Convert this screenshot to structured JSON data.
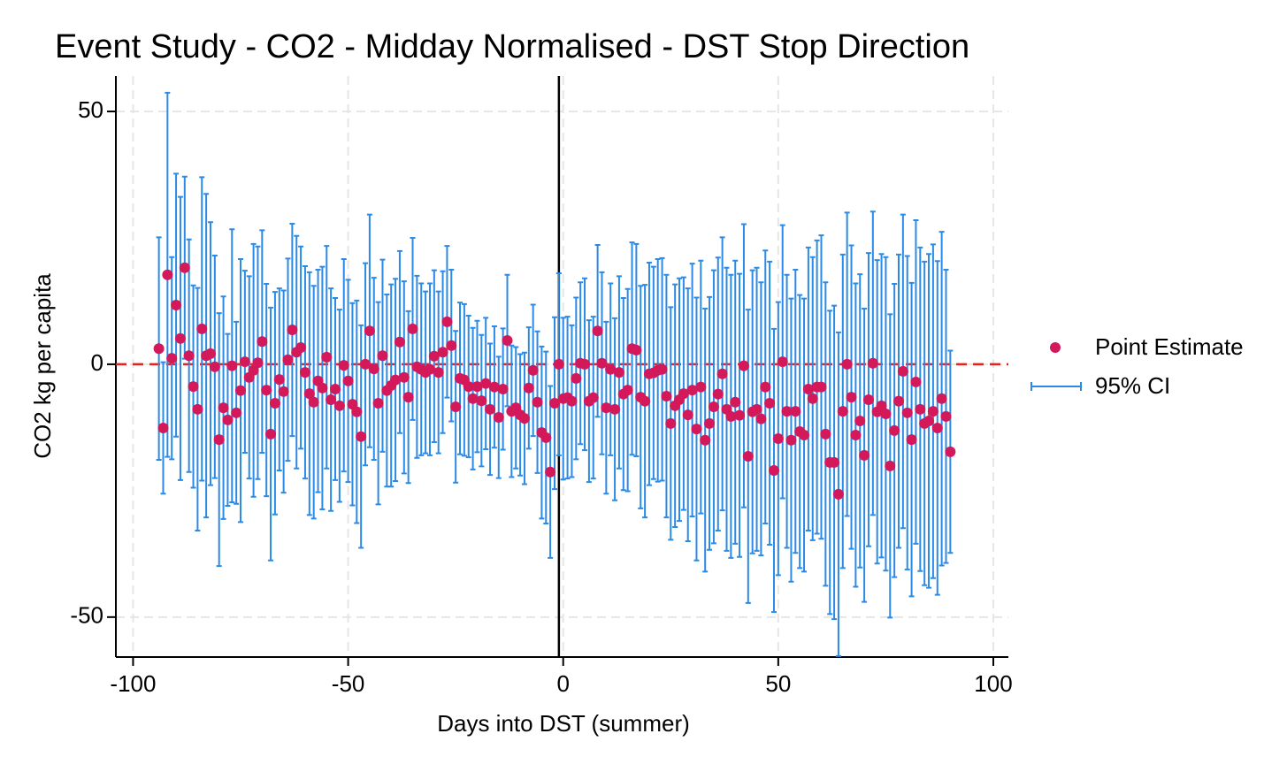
{
  "chart_data": {
    "type": "errorbar",
    "title": "Event Study - CO2 - Midday Normalised - DST Stop Direction",
    "x_label": "Days into DST (summer)",
    "y_label": "CO2 kg per capita",
    "x": [
      -94,
      -93,
      -92,
      -91,
      -90,
      -89,
      -88,
      -87,
      -86,
      -85,
      -84,
      -83,
      -82,
      -81,
      -80,
      -79,
      -78,
      -77,
      -76,
      -75,
      -74,
      -73,
      -72,
      -71,
      -70,
      -69,
      -68,
      -67,
      -66,
      -65,
      -64,
      -63,
      -62,
      -61,
      -60,
      -59,
      -58,
      -57,
      -56,
      -55,
      -54,
      -53,
      -52,
      -51,
      -50,
      -49,
      -48,
      -47,
      -46,
      -45,
      -44,
      -43,
      -42,
      -41,
      -40,
      -39,
      -38,
      -37,
      -36,
      -35,
      -34,
      -33,
      -32,
      -31,
      -30,
      -29,
      -28,
      -27,
      -26,
      -25,
      -24,
      -23,
      -22,
      -21,
      -20,
      -19,
      -18,
      -17,
      -16,
      -15,
      -14,
      -13,
      -12,
      -11,
      -10,
      -9,
      -8,
      -7,
      -6,
      -5,
      -4,
      -3,
      -2,
      -1,
      0,
      1,
      2,
      3,
      4,
      5,
      6,
      7,
      8,
      9,
      10,
      11,
      12,
      13,
      14,
      15,
      16,
      17,
      18,
      19,
      20,
      21,
      22,
      23,
      24,
      25,
      26,
      27,
      28,
      29,
      30,
      31,
      32,
      33,
      34,
      35,
      36,
      37,
      38,
      39,
      40,
      41,
      42,
      43,
      44,
      45,
      46,
      47,
      48,
      49,
      50,
      51,
      52,
      53,
      54,
      55,
      56,
      57,
      58,
      59,
      60,
      61,
      62,
      63,
      64,
      65,
      66,
      67,
      68,
      69,
      70,
      71,
      72,
      73,
      74,
      75,
      76,
      77,
      78,
      79,
      80,
      81,
      82,
      83,
      84,
      85,
      86,
      87,
      88,
      89,
      90
    ],
    "series": [
      {
        "name": "Point Estimate",
        "color": "#d3195a",
        "values": [
          3.1,
          -12.6,
          17.7,
          1.2,
          11.7,
          5.1,
          19.1,
          1.7,
          -4.4,
          -8.9,
          7.0,
          1.7,
          2.1,
          -0.5,
          -14.9,
          -8.6,
          -11.0,
          -0.3,
          -9.6,
          -5.2,
          0.5,
          -2.6,
          -1.2,
          0.3,
          4.5,
          -5.1,
          -13.8,
          -7.7,
          -3.0,
          -5.4,
          0.9,
          6.8,
          2.4,
          3.3,
          -1.6,
          -5.8,
          -7.5,
          -3.3,
          -4.7,
          1.4,
          -7.0,
          -4.9,
          -8.2,
          -0.2,
          -3.3,
          -7.9,
          -9.4,
          -14.3,
          0,
          6.6,
          -0.9,
          -7.7,
          1.7,
          -5.2,
          -4.2,
          -3.1,
          4.4,
          -2.6,
          -6.5,
          7.0,
          -0.5,
          -1.0,
          -1.6,
          -1.0,
          1.6,
          -1.6,
          2.4,
          8.4,
          3.7,
          -8.4,
          -2.8,
          -3.1,
          -4.4,
          -6.8,
          -4.4,
          -7.2,
          -3.8,
          -8.9,
          -4.5,
          -10.5,
          -4.9,
          4.7,
          -9.3,
          -8.6,
          -10.0,
          -10.7,
          -4.7,
          -1.2,
          -7.5,
          -13.5,
          -14.5,
          -21.3,
          -7.7,
          0,
          -6.8,
          -6.6,
          -7.3,
          -2.8,
          0.2,
          0,
          -7.3,
          -6.6,
          6.6,
          0.2,
          -8.6,
          -1.0,
          -8.9,
          -1.6,
          -5.9,
          -5.1,
          3.1,
          2.8,
          -6.5,
          -7.3,
          -1.9,
          -1.7,
          -1.2,
          -1.0,
          -6.3,
          -11.7,
          -8.2,
          -7.0,
          -5.8,
          -10.0,
          -5.1,
          -12.8,
          -4.5,
          -15.0,
          -11.7,
          -8.4,
          -5.9,
          -1.9,
          -8.9,
          -10.3,
          -7.5,
          -10.1,
          -0.3,
          -18.2,
          -9.4,
          -8.9,
          -10.8,
          -4.5,
          -7.7,
          -21.0,
          -14.7,
          0.5,
          -9.3,
          -15.0,
          -9.3,
          -13.3,
          -14.0,
          -4.9,
          -6.8,
          -4.5,
          -4.5,
          -13.8,
          -19.4,
          -19.4,
          -25.7,
          -9.3,
          0,
          -6.5,
          -14.0,
          -11.2,
          -18.0,
          -7.0,
          0.2,
          -9.4,
          -8.2,
          -9.8,
          -20.1,
          -13.1,
          -7.3,
          -1.4,
          -9.6,
          -14.9,
          -3.5,
          -8.9,
          -11.7,
          -11.2,
          -9.3,
          -12.6,
          -6.8,
          -10.3,
          -17.3
        ]
      }
    ],
    "ci": {
      "name": "95% CI",
      "color": "#2b8ae6",
      "errors": [
        22,
        13,
        36,
        20,
        26,
        28,
        18,
        23,
        20,
        24,
        30,
        32,
        26,
        22,
        25,
        22,
        17,
        27,
        18,
        26,
        18,
        20,
        25,
        23,
        22,
        21,
        25,
        22,
        18,
        20,
        20,
        21,
        23,
        20,
        21,
        24,
        23,
        22,
        24,
        22,
        22,
        18,
        19,
        21,
        20,
        20,
        22,
        22,
        20,
        23,
        18,
        20,
        19,
        19,
        20,
        20,
        18,
        19,
        17,
        18,
        18,
        17,
        16,
        17,
        17,
        16,
        16,
        15,
        15,
        15,
        15,
        15,
        14,
        14,
        13,
        13,
        13,
        13,
        12,
        12,
        12,
        13,
        13,
        12,
        12,
        13,
        12,
        13,
        14,
        17,
        17,
        17,
        17,
        18,
        16,
        16,
        15,
        16,
        16,
        17,
        16,
        16,
        17,
        18,
        17,
        17,
        18,
        19,
        19,
        20,
        21,
        21,
        22,
        23,
        22,
        21,
        22,
        22,
        24,
        23,
        24,
        24,
        23,
        25,
        25,
        26,
        25,
        26,
        25,
        27,
        27,
        27,
        28,
        28,
        28,
        28,
        28,
        29,
        28,
        28,
        27,
        27,
        28,
        28,
        27,
        27,
        27,
        28,
        28,
        27,
        27,
        28,
        28,
        29,
        30,
        30,
        30,
        31,
        32,
        31,
        30,
        30,
        30,
        29,
        29,
        29,
        30,
        30,
        30,
        31,
        30,
        29,
        29,
        31,
        31,
        31,
        32,
        32,
        32,
        33,
        33,
        33,
        33,
        29,
        20
      ]
    },
    "xlim": [
      -104,
      103.5
    ],
    "ylim": [
      -57.9,
      57
    ],
    "xticks": [
      -100,
      -50,
      0,
      50,
      100
    ],
    "yticks": [
      -50,
      0,
      50
    ],
    "hline": 0,
    "hline_color": "#e8211c",
    "vline": -1,
    "vline_color": "#000000",
    "grid": true
  }
}
